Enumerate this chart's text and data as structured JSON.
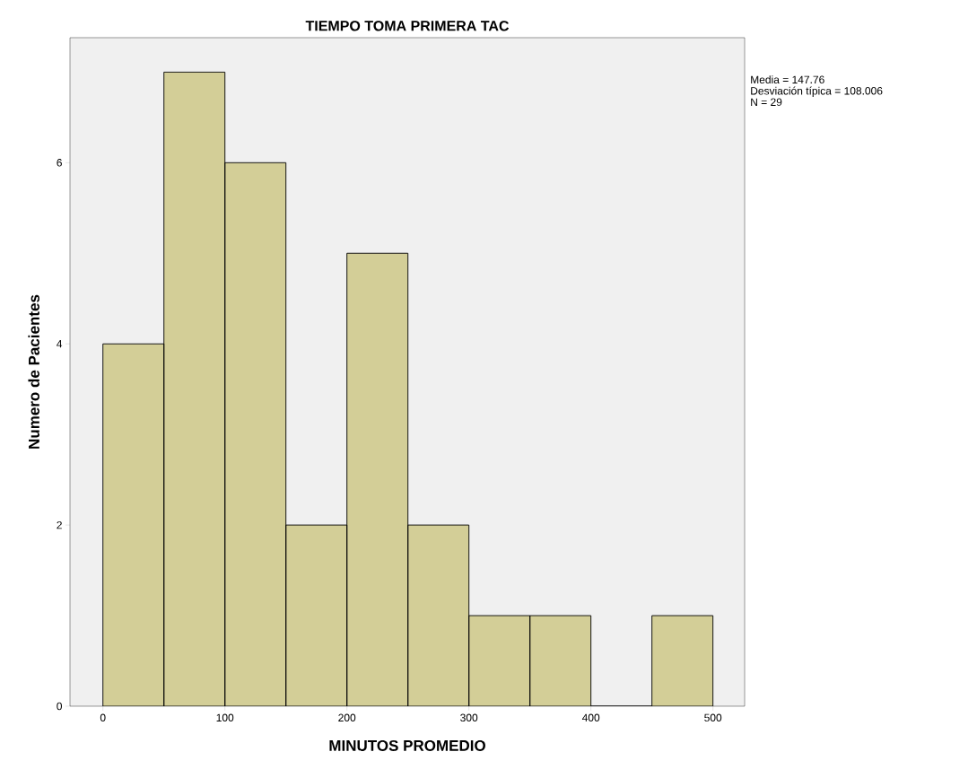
{
  "chart_data": {
    "type": "histogram",
    "title": "TIEMPO TOMA PRIMERA TAC",
    "xlabel": "MINUTOS PROMEDIO",
    "ylabel": "Numero de Pacientes",
    "annotations": [
      "Media = 147.76",
      "Desviación típica = 108.006",
      "N = 29"
    ],
    "bins": [
      0,
      50,
      100,
      150,
      200,
      250,
      300,
      350,
      400,
      450,
      500
    ],
    "values": [
      4,
      7,
      6,
      2,
      5,
      2,
      1,
      1,
      0,
      1
    ],
    "color": "#d3ce97",
    "xlim": [
      -27,
      526
    ],
    "ylim": [
      0,
      7.38
    ],
    "xticks": [
      0,
      100,
      200,
      300,
      400,
      500
    ],
    "yticks": [
      0,
      2,
      4,
      6
    ]
  }
}
